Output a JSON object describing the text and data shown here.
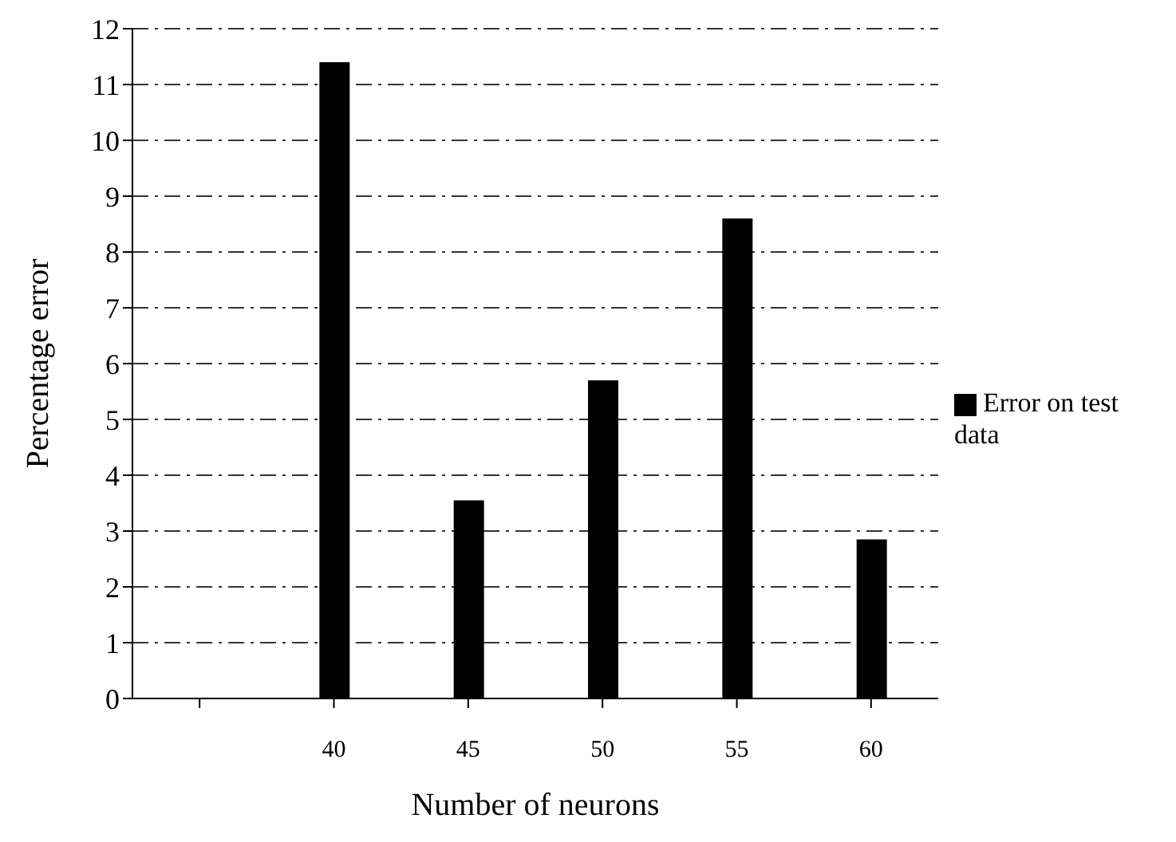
{
  "chart_data": {
    "type": "bar",
    "xlabel": "Number of neurons",
    "ylabel": "Percentage error",
    "categories": [
      null,
      "40",
      "45",
      "50",
      "55",
      "60"
    ],
    "series": [
      {
        "name": "Error on test data",
        "color": "#000000",
        "values": [
          null,
          11.4,
          3.55,
          5.7,
          8.6,
          2.85
        ]
      }
    ],
    "ylim": [
      0,
      12
    ],
    "yticks": [
      0,
      1,
      2,
      3,
      4,
      5,
      6,
      7,
      8,
      9,
      10,
      11,
      12
    ],
    "grid": "y",
    "legend": "right",
    "line_style": "dashed"
  }
}
